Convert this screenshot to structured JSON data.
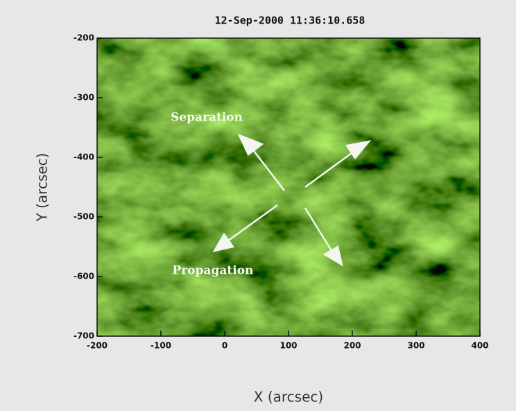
{
  "chart_data": {
    "type": "image",
    "title": "12-Sep-2000 11:36:10.658",
    "x_label": "X (arcsec)",
    "y_label": "Y (arcsec)",
    "xlim": [
      -200,
      400
    ],
    "xticks": [
      -200,
      -100,
      0,
      100,
      200,
      300,
      400
    ],
    "ylim": [
      -700,
      -200
    ],
    "yticks": [
      -200,
      -300,
      -400,
      -500,
      -600,
      -700
    ],
    "annotations": [
      "Separation",
      "Propagation"
    ]
  }
}
